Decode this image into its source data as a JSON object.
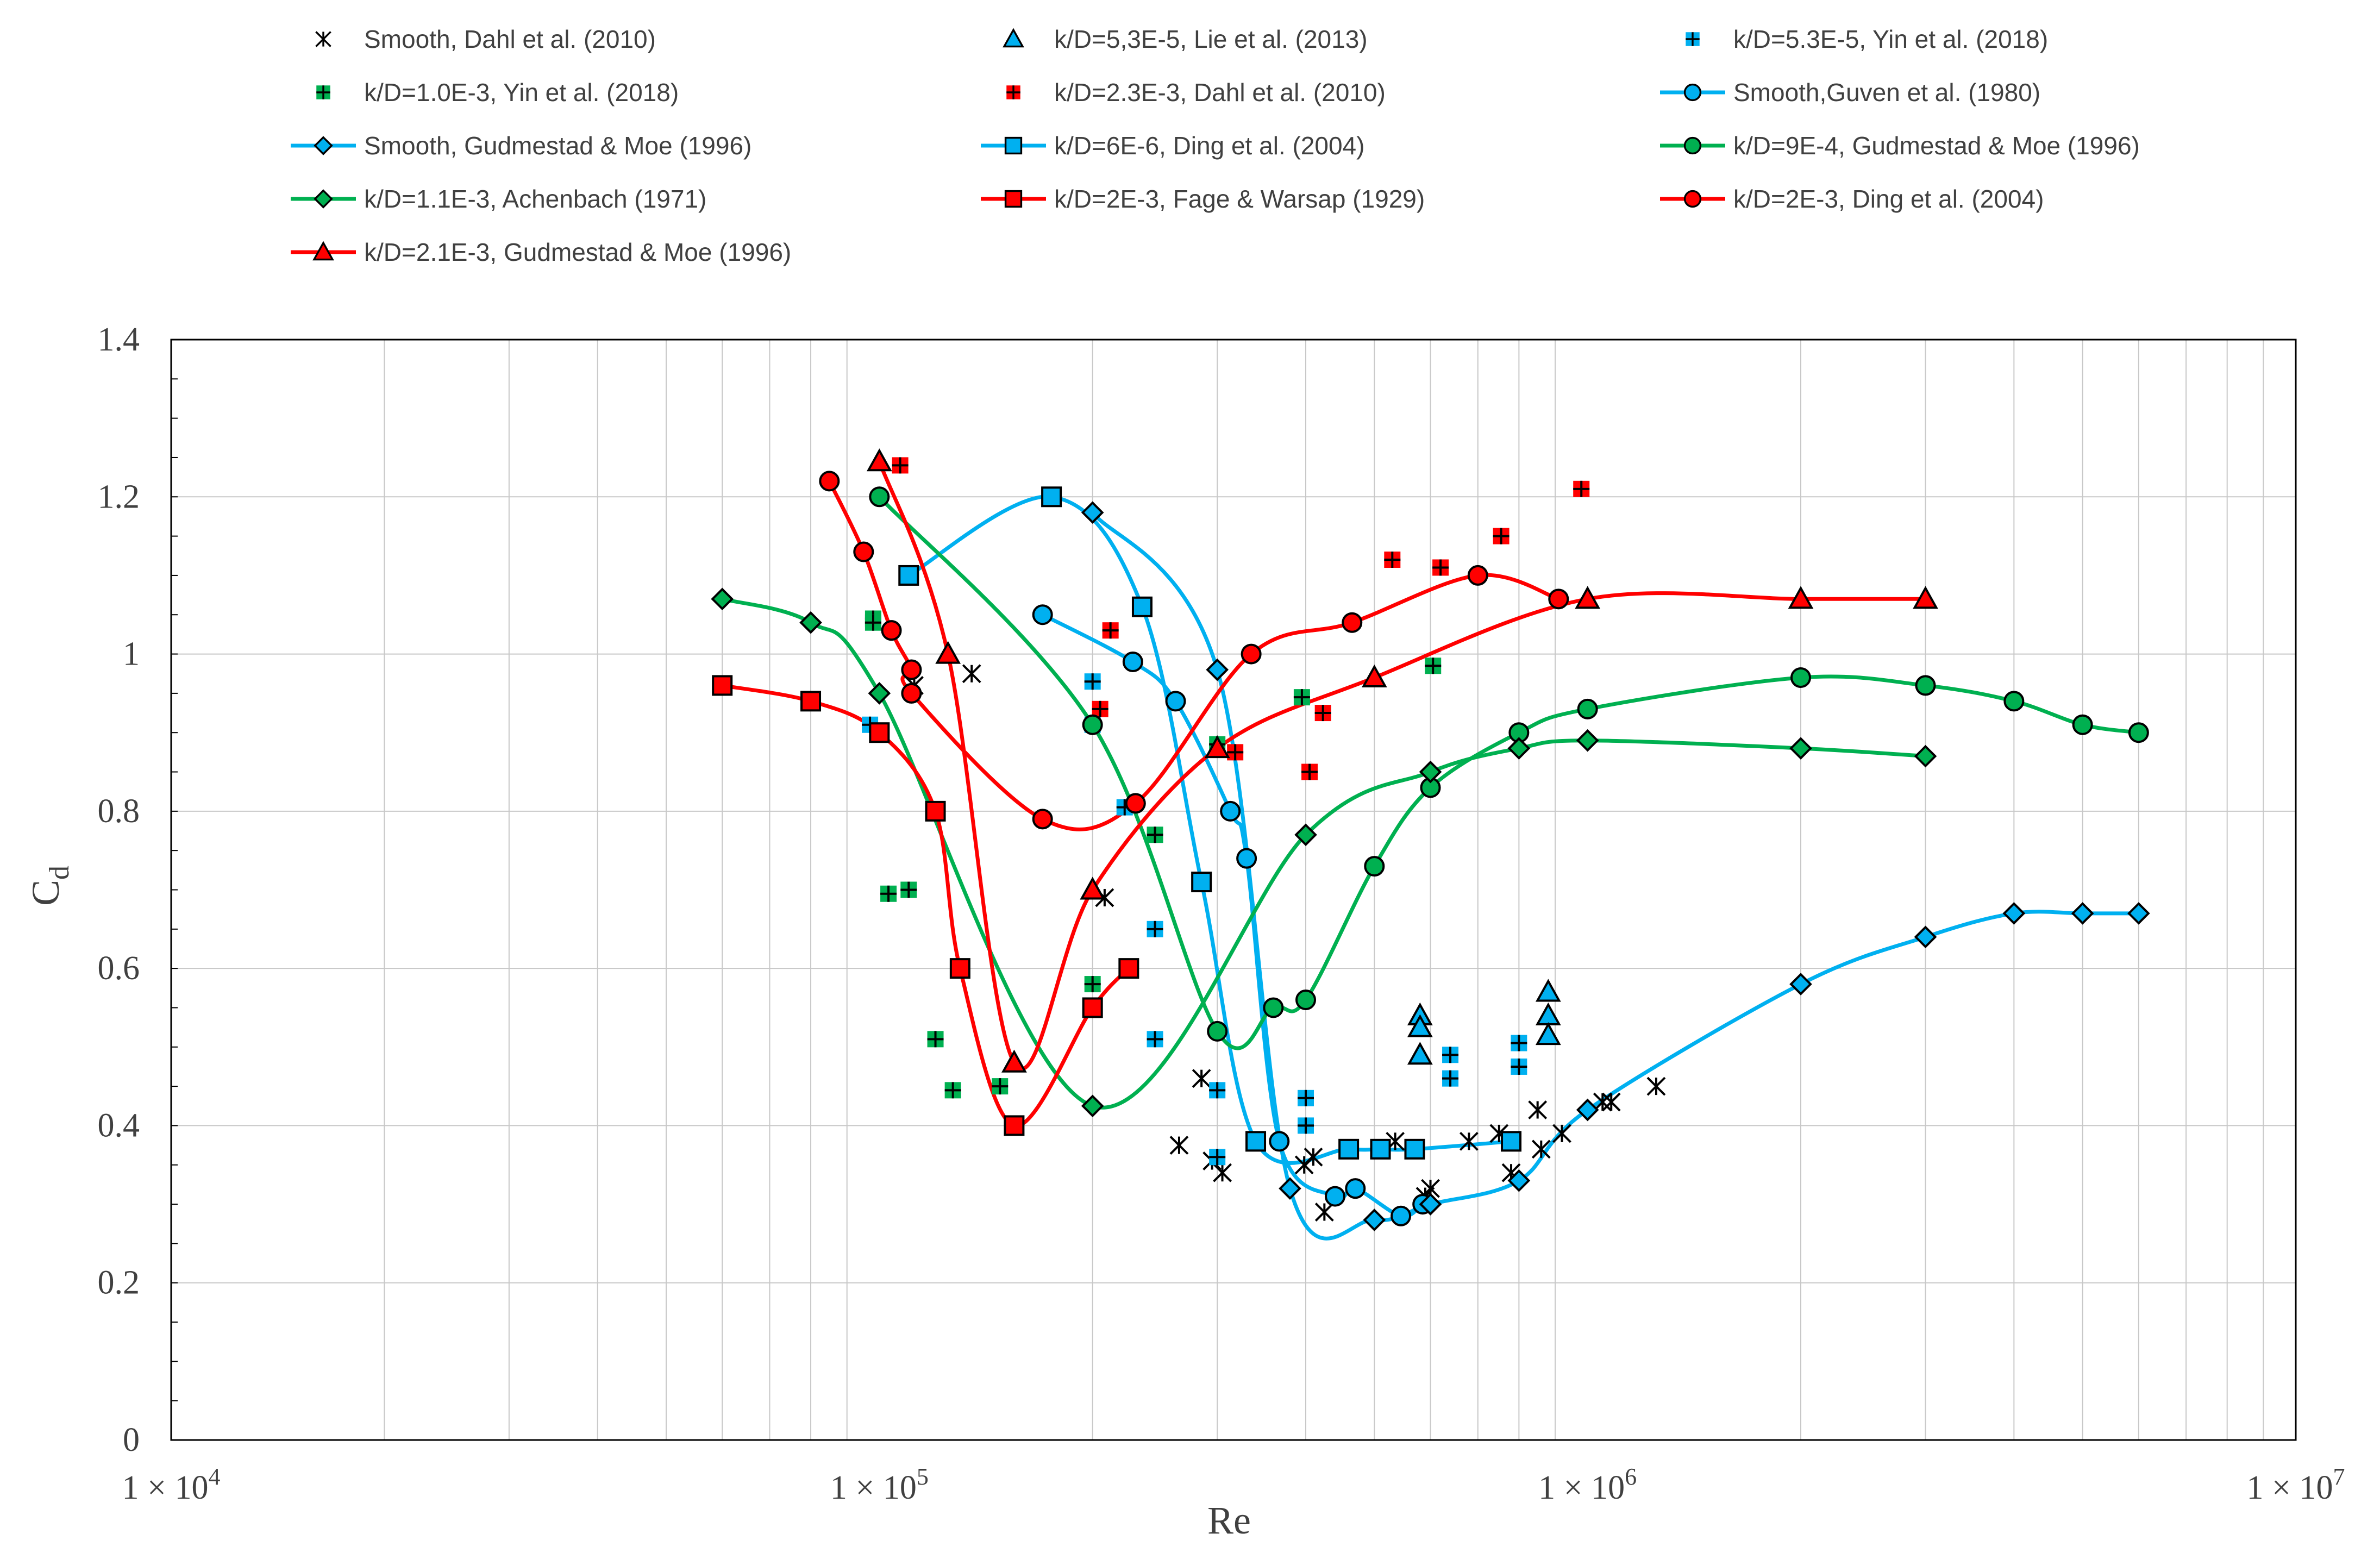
{
  "chart_data": {
    "type": "scatter",
    "title": "",
    "xlabel": "Re",
    "ylabel": "C",
    "ylabel_subscript": "d",
    "xscale": "log",
    "xlim": [
      10000,
      10000000
    ],
    "ylim": [
      0,
      1.4
    ],
    "x_tick_labels": [
      {
        "value": 10000,
        "mantissa": "1",
        "times": "×",
        "base": "10",
        "exp": "4"
      },
      {
        "value": 100000,
        "mantissa": "1",
        "times": "×",
        "base": "10",
        "exp": "5"
      },
      {
        "value": 1000000,
        "mantissa": "1",
        "times": "×",
        "base": "10",
        "exp": "6"
      },
      {
        "value": 10000000,
        "mantissa": "1",
        "times": "×",
        "base": "10",
        "exp": "7"
      }
    ],
    "y_ticks": [
      {
        "value": 0,
        "label": "0"
      },
      {
        "value": 0.2,
        "label": "0.2"
      },
      {
        "value": 0.4,
        "label": "0.4"
      },
      {
        "value": 0.6,
        "label": "0.6"
      },
      {
        "value": 0.8,
        "label": "0.8"
      },
      {
        "value": 1.0,
        "label": "1"
      },
      {
        "value": 1.2,
        "label": "1.2"
      },
      {
        "value": 1.4,
        "label": "1.4"
      }
    ],
    "grid": true,
    "legend_position": "top",
    "series": [
      {
        "name": "Smooth, Dahl et al. (2010)",
        "marker": "asterisk",
        "line": false,
        "color": "#000000",
        "x": [
          112000,
          135000,
          265000,
          285000,
          295000,
          305000,
          398000,
          410000,
          425000,
          535000,
          590000,
          600000,
          680000,
          750000,
          780000,
          850000,
          860000,
          920000,
          1050000,
          1080000,
          1250000,
          208000
        ],
        "y": [
          0.96,
          0.975,
          0.375,
          0.46,
          0.355,
          0.34,
          0.35,
          0.36,
          0.29,
          0.38,
          0.31,
          0.32,
          0.38,
          0.39,
          0.34,
          0.42,
          0.37,
          0.39,
          0.43,
          0.43,
          0.45,
          0.69
        ]
      },
      {
        "name": "k/D=5,3E-5, Lie et al. (2013)",
        "marker": "triangle",
        "line": false,
        "color": "#00B0F0",
        "x": [
          580000,
          580000,
          580000,
          880000,
          880000,
          880000
        ],
        "y": [
          0.54,
          0.525,
          0.49,
          0.57,
          0.54,
          0.515
        ]
      },
      {
        "name": "k/D=5.3E-5, Yin et al. (2018)",
        "marker": "square-plus",
        "line": false,
        "color": "#00B0F0",
        "x": [
          97000,
          200000,
          200000,
          222000,
          245000,
          245000,
          300000,
          300000,
          400000,
          400000,
          640000,
          640000,
          800000,
          800000
        ],
        "y": [
          0.91,
          0.965,
          0.91,
          0.805,
          0.65,
          0.51,
          0.445,
          0.36,
          0.435,
          0.4,
          0.49,
          0.46,
          0.505,
          0.475
        ]
      },
      {
        "name": "k/D=1.0E-3, Yin et al. (2018)",
        "marker": "square-plus",
        "line": false,
        "color": "#00B050",
        "x": [
          98000,
          98000,
          103000,
          110000,
          120000,
          127000,
          148000,
          200000,
          245000,
          300000,
          395000,
          605000
        ],
        "y": [
          1.045,
          1.04,
          0.695,
          0.7,
          0.51,
          0.445,
          0.45,
          0.58,
          0.77,
          0.885,
          0.945,
          0.985
        ]
      },
      {
        "name": "k/D=2.3E-3, Dahl et al. (2010)",
        "marker": "square-plus",
        "line": false,
        "color": "#FF0000",
        "x": [
          107000,
          205000,
          212000,
          318000,
          405000,
          423000,
          530000,
          620000,
          755000,
          980000
        ],
        "y": [
          1.24,
          0.93,
          1.03,
          0.875,
          0.85,
          0.925,
          1.12,
          1.11,
          1.15,
          1.21
        ]
      },
      {
        "name": "Smooth,Guven et al. (1980)",
        "marker": "circle",
        "line": true,
        "color": "#00B0F0",
        "x": [
          170000,
          228000,
          262000,
          313000,
          330000,
          367000,
          440000,
          470000,
          545000,
          585000
        ],
        "y": [
          1.05,
          0.99,
          0.94,
          0.8,
          0.74,
          0.38,
          0.31,
          0.32,
          0.285,
          0.3
        ]
      },
      {
        "name": "Smooth, Gudmestad & Moe (1996)",
        "marker": "diamond",
        "line": true,
        "color": "#00B0F0",
        "x": [
          200000,
          300000,
          380000,
          500000,
          600000,
          800000,
          1000000,
          2000000,
          3000000,
          4000000,
          5000000,
          6000000
        ],
        "y": [
          1.18,
          0.98,
          0.32,
          0.28,
          0.3,
          0.33,
          0.42,
          0.58,
          0.64,
          0.67,
          0.67,
          0.67
        ]
      },
      {
        "name": "k/D=6E-6, Ding et al. (2004)",
        "marker": "square",
        "line": true,
        "color": "#00B0F0",
        "x": [
          110000,
          175000,
          235000,
          285000,
          340000,
          460000,
          510000,
          570000,
          780000
        ],
        "y": [
          1.1,
          1.2,
          1.06,
          0.71,
          0.38,
          0.37,
          0.37,
          0.37,
          0.38
        ]
      },
      {
        "name": "k/D=9E-4, Gudmestad & Moe (1996)",
        "marker": "circle",
        "line": true,
        "color": "#00B050",
        "x": [
          100000,
          200000,
          300000,
          360000,
          400000,
          500000,
          600000,
          800000,
          1000000,
          2000000,
          3000000,
          4000000,
          5000000,
          6000000
        ],
        "y": [
          1.2,
          0.91,
          0.52,
          0.55,
          0.56,
          0.73,
          0.83,
          0.9,
          0.93,
          0.97,
          0.96,
          0.94,
          0.91,
          0.9
        ]
      },
      {
        "name": " k/D=1.1E-3, Achenbach (1971)",
        "marker": "diamond",
        "line": true,
        "color": "#00B050",
        "x": [
          60000,
          80000,
          100000,
          200000,
          400000,
          600000,
          800000,
          1000000,
          2000000,
          3000000
        ],
        "y": [
          1.07,
          1.04,
          0.95,
          0.425,
          0.77,
          0.85,
          0.88,
          0.89,
          0.88,
          0.87
        ]
      },
      {
        "name": "k/D=2E-3, Fage & Warsap (1929)",
        "marker": "square",
        "line": true,
        "color": "#FF0000",
        "x": [
          60000,
          80000,
          100000,
          120000,
          130000,
          155000,
          200000,
          225000
        ],
        "y": [
          0.96,
          0.94,
          0.9,
          0.8,
          0.6,
          0.4,
          0.55,
          0.6
        ]
      },
      {
        "name": "k/D=2E-3, Ding et al. (2004)",
        "marker": "circle",
        "line": true,
        "color": "#FF0000",
        "x": [
          85000,
          95000,
          104000,
          111000,
          111000,
          170000,
          230000,
          335000,
          465000,
          700000,
          910000
        ],
        "y": [
          1.22,
          1.13,
          1.03,
          0.98,
          0.95,
          0.79,
          0.81,
          1.0,
          1.04,
          1.1,
          1.07
        ]
      },
      {
        "name": "k/D=2.1E-3, Gudmestad & Moe (1996)",
        "marker": "triangle",
        "line": true,
        "color": "#FF0000",
        "x": [
          100000,
          125000,
          155000,
          200000,
          300000,
          500000,
          1000000,
          2000000,
          3000000
        ],
        "y": [
          1.245,
          1.0,
          0.48,
          0.7,
          0.88,
          0.97,
          1.07,
          1.07,
          1.07
        ]
      }
    ]
  }
}
